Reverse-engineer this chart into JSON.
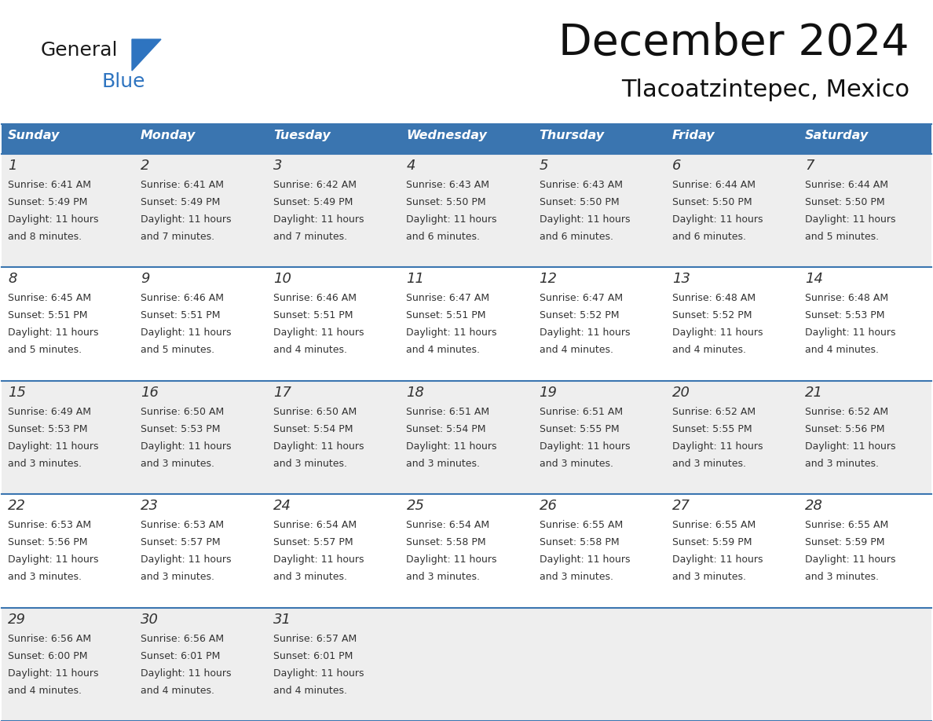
{
  "title": "December 2024",
  "subtitle": "Tlacoatzintepec, Mexico",
  "header_color": "#3a75b0",
  "header_text_color": "#ffffff",
  "cell_bg_white": "#ffffff",
  "cell_bg_gray": "#eeeeee",
  "border_color": "#3a75b0",
  "text_color": "#333333",
  "days_of_week": [
    "Sunday",
    "Monday",
    "Tuesday",
    "Wednesday",
    "Thursday",
    "Friday",
    "Saturday"
  ],
  "weeks": [
    [
      {
        "day": "1",
        "sunrise": "6:41 AM",
        "sunset": "5:49 PM",
        "daylight_line1": "Daylight: 11 hours",
        "daylight_line2": "and 8 minutes."
      },
      {
        "day": "2",
        "sunrise": "6:41 AM",
        "sunset": "5:49 PM",
        "daylight_line1": "Daylight: 11 hours",
        "daylight_line2": "and 7 minutes."
      },
      {
        "day": "3",
        "sunrise": "6:42 AM",
        "sunset": "5:49 PM",
        "daylight_line1": "Daylight: 11 hours",
        "daylight_line2": "and 7 minutes."
      },
      {
        "day": "4",
        "sunrise": "6:43 AM",
        "sunset": "5:50 PM",
        "daylight_line1": "Daylight: 11 hours",
        "daylight_line2": "and 6 minutes."
      },
      {
        "day": "5",
        "sunrise": "6:43 AM",
        "sunset": "5:50 PM",
        "daylight_line1": "Daylight: 11 hours",
        "daylight_line2": "and 6 minutes."
      },
      {
        "day": "6",
        "sunrise": "6:44 AM",
        "sunset": "5:50 PM",
        "daylight_line1": "Daylight: 11 hours",
        "daylight_line2": "and 6 minutes."
      },
      {
        "day": "7",
        "sunrise": "6:44 AM",
        "sunset": "5:50 PM",
        "daylight_line1": "Daylight: 11 hours",
        "daylight_line2": "and 5 minutes."
      }
    ],
    [
      {
        "day": "8",
        "sunrise": "6:45 AM",
        "sunset": "5:51 PM",
        "daylight_line1": "Daylight: 11 hours",
        "daylight_line2": "and 5 minutes."
      },
      {
        "day": "9",
        "sunrise": "6:46 AM",
        "sunset": "5:51 PM",
        "daylight_line1": "Daylight: 11 hours",
        "daylight_line2": "and 5 minutes."
      },
      {
        "day": "10",
        "sunrise": "6:46 AM",
        "sunset": "5:51 PM",
        "daylight_line1": "Daylight: 11 hours",
        "daylight_line2": "and 4 minutes."
      },
      {
        "day": "11",
        "sunrise": "6:47 AM",
        "sunset": "5:51 PM",
        "daylight_line1": "Daylight: 11 hours",
        "daylight_line2": "and 4 minutes."
      },
      {
        "day": "12",
        "sunrise": "6:47 AM",
        "sunset": "5:52 PM",
        "daylight_line1": "Daylight: 11 hours",
        "daylight_line2": "and 4 minutes."
      },
      {
        "day": "13",
        "sunrise": "6:48 AM",
        "sunset": "5:52 PM",
        "daylight_line1": "Daylight: 11 hours",
        "daylight_line2": "and 4 minutes."
      },
      {
        "day": "14",
        "sunrise": "6:48 AM",
        "sunset": "5:53 PM",
        "daylight_line1": "Daylight: 11 hours",
        "daylight_line2": "and 4 minutes."
      }
    ],
    [
      {
        "day": "15",
        "sunrise": "6:49 AM",
        "sunset": "5:53 PM",
        "daylight_line1": "Daylight: 11 hours",
        "daylight_line2": "and 3 minutes."
      },
      {
        "day": "16",
        "sunrise": "6:50 AM",
        "sunset": "5:53 PM",
        "daylight_line1": "Daylight: 11 hours",
        "daylight_line2": "and 3 minutes."
      },
      {
        "day": "17",
        "sunrise": "6:50 AM",
        "sunset": "5:54 PM",
        "daylight_line1": "Daylight: 11 hours",
        "daylight_line2": "and 3 minutes."
      },
      {
        "day": "18",
        "sunrise": "6:51 AM",
        "sunset": "5:54 PM",
        "daylight_line1": "Daylight: 11 hours",
        "daylight_line2": "and 3 minutes."
      },
      {
        "day": "19",
        "sunrise": "6:51 AM",
        "sunset": "5:55 PM",
        "daylight_line1": "Daylight: 11 hours",
        "daylight_line2": "and 3 minutes."
      },
      {
        "day": "20",
        "sunrise": "6:52 AM",
        "sunset": "5:55 PM",
        "daylight_line1": "Daylight: 11 hours",
        "daylight_line2": "and 3 minutes."
      },
      {
        "day": "21",
        "sunrise": "6:52 AM",
        "sunset": "5:56 PM",
        "daylight_line1": "Daylight: 11 hours",
        "daylight_line2": "and 3 minutes."
      }
    ],
    [
      {
        "day": "22",
        "sunrise": "6:53 AM",
        "sunset": "5:56 PM",
        "daylight_line1": "Daylight: 11 hours",
        "daylight_line2": "and 3 minutes."
      },
      {
        "day": "23",
        "sunrise": "6:53 AM",
        "sunset": "5:57 PM",
        "daylight_line1": "Daylight: 11 hours",
        "daylight_line2": "and 3 minutes."
      },
      {
        "day": "24",
        "sunrise": "6:54 AM",
        "sunset": "5:57 PM",
        "daylight_line1": "Daylight: 11 hours",
        "daylight_line2": "and 3 minutes."
      },
      {
        "day": "25",
        "sunrise": "6:54 AM",
        "sunset": "5:58 PM",
        "daylight_line1": "Daylight: 11 hours",
        "daylight_line2": "and 3 minutes."
      },
      {
        "day": "26",
        "sunrise": "6:55 AM",
        "sunset": "5:58 PM",
        "daylight_line1": "Daylight: 11 hours",
        "daylight_line2": "and 3 minutes."
      },
      {
        "day": "27",
        "sunrise": "6:55 AM",
        "sunset": "5:59 PM",
        "daylight_line1": "Daylight: 11 hours",
        "daylight_line2": "and 3 minutes."
      },
      {
        "day": "28",
        "sunrise": "6:55 AM",
        "sunset": "5:59 PM",
        "daylight_line1": "Daylight: 11 hours",
        "daylight_line2": "and 3 minutes."
      }
    ],
    [
      {
        "day": "29",
        "sunrise": "6:56 AM",
        "sunset": "6:00 PM",
        "daylight_line1": "Daylight: 11 hours",
        "daylight_line2": "and 4 minutes."
      },
      {
        "day": "30",
        "sunrise": "6:56 AM",
        "sunset": "6:01 PM",
        "daylight_line1": "Daylight: 11 hours",
        "daylight_line2": "and 4 minutes."
      },
      {
        "day": "31",
        "sunrise": "6:57 AM",
        "sunset": "6:01 PM",
        "daylight_line1": "Daylight: 11 hours",
        "daylight_line2": "and 4 minutes."
      },
      null,
      null,
      null,
      null
    ]
  ],
  "logo_general_color": "#1a1a1a",
  "logo_blue_color": "#2e74c0",
  "logo_triangle_color": "#2e74c0",
  "fig_width": 11.88,
  "fig_height": 9.18,
  "dpi": 100
}
